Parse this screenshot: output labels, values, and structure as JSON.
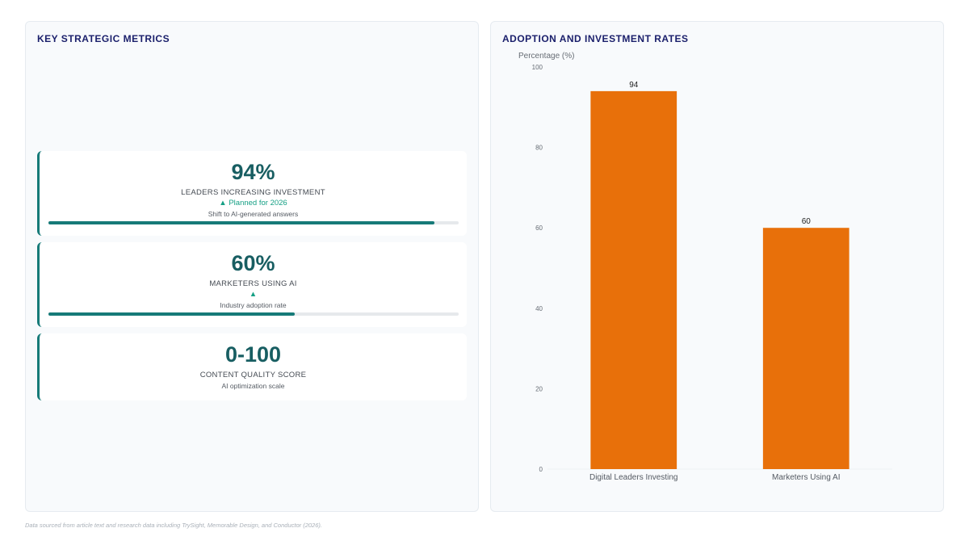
{
  "left_panel": {
    "title": "KEY STRATEGIC METRICS",
    "metrics": [
      {
        "value": "94%",
        "label": "LEADERS INCREASING INVESTMENT",
        "trend": "▲ Planned for 2026",
        "subtitle": "Shift to AI-generated answers",
        "progress_percent": 94
      },
      {
        "value": "60%",
        "label": "MARKETERS USING AI",
        "trend": "▲",
        "subtitle": "Industry adoption rate",
        "progress_percent": 60
      },
      {
        "value": "0-100",
        "label": "CONTENT QUALITY SCORE",
        "subtitle": "AI optimization scale"
      }
    ]
  },
  "right_panel": {
    "title": "ADOPTION AND INVESTMENT RATES"
  },
  "chart_data": {
    "type": "bar",
    "categories": [
      "Digital Leaders Investing",
      "Marketers Using AI"
    ],
    "values": [
      94,
      60
    ],
    "data_labels": [
      "94",
      "60"
    ],
    "ylabel": "Percentage (%)",
    "xlabel": "",
    "ylim": [
      0,
      100
    ],
    "yticks": [
      0,
      20,
      40,
      60,
      80,
      100
    ],
    "grid": false,
    "bar_color": "#e8700a"
  },
  "colors": {
    "accent": "#167a78",
    "title": "#1a1f6b",
    "trend": "#16a085",
    "bar": "#e8700a"
  },
  "footnote": "Data sourced from article text and research data including TrySight, Memorable Design, and Conductor (2026)."
}
